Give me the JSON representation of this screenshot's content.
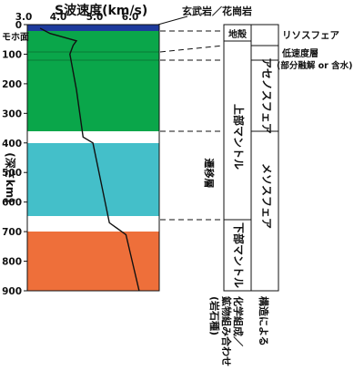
{
  "title": "S波速度(km/s)",
  "top_annotation": "玄武岩／花崗岩",
  "x_ticks": [
    "3.0",
    "4.0",
    "5.0",
    "6.0"
  ],
  "y_ticks": [
    "0",
    "100",
    "200",
    "300",
    "400",
    "500",
    "600",
    "700",
    "800",
    "900"
  ],
  "y_axis_label": "(深さkm)",
  "moho_label": "モホ面",
  "colors": {
    "green": "#0aa64a",
    "cyan": "#44bfc9",
    "orange": "#ee6f3a",
    "crust_blue": "#1d3a9c"
  },
  "chart_data": {
    "type": "line",
    "title": "S波速度(km/s)",
    "xlim": [
      3.0,
      7.0
    ],
    "ylim": [
      0,
      900
    ],
    "y_inverted": true,
    "series": [
      {
        "depth": [
          0,
          30,
          55,
          70,
          100,
          220,
          380,
          400,
          670,
          710,
          900
        ],
        "vs": [
          3.5,
          3.8,
          4.6,
          4.5,
          4.4,
          4.6,
          4.8,
          5.1,
          5.6,
          6.1,
          6.5
        ]
      }
    ],
    "layers": [
      {
        "from": 0,
        "to": 370,
        "color": "green"
      },
      {
        "from": 370,
        "to": 410,
        "color": "white"
      },
      {
        "from": 410,
        "to": 655,
        "color": "cyan"
      },
      {
        "from": 655,
        "to": 695,
        "color": "white"
      },
      {
        "from": 695,
        "to": 900,
        "color": "orange"
      }
    ]
  },
  "composition": {
    "crust": "地殻",
    "upper_mantle": "上部マントル",
    "transition": "遷移層",
    "lower_mantle": "下部マントル"
  },
  "structure": {
    "lithosphere": "リソスフェア",
    "asthenosphere": "アセノスフェア",
    "mesosphere": "メソスフェア"
  },
  "low_velocity": {
    "line1": "低速度層",
    "line2": "(部分融解 or 含水)"
  },
  "footer": {
    "chemical": "化学組成／",
    "mineral": "鉱物組み合わせ",
    "rock": "(岩石種)",
    "structural": "構造による"
  }
}
